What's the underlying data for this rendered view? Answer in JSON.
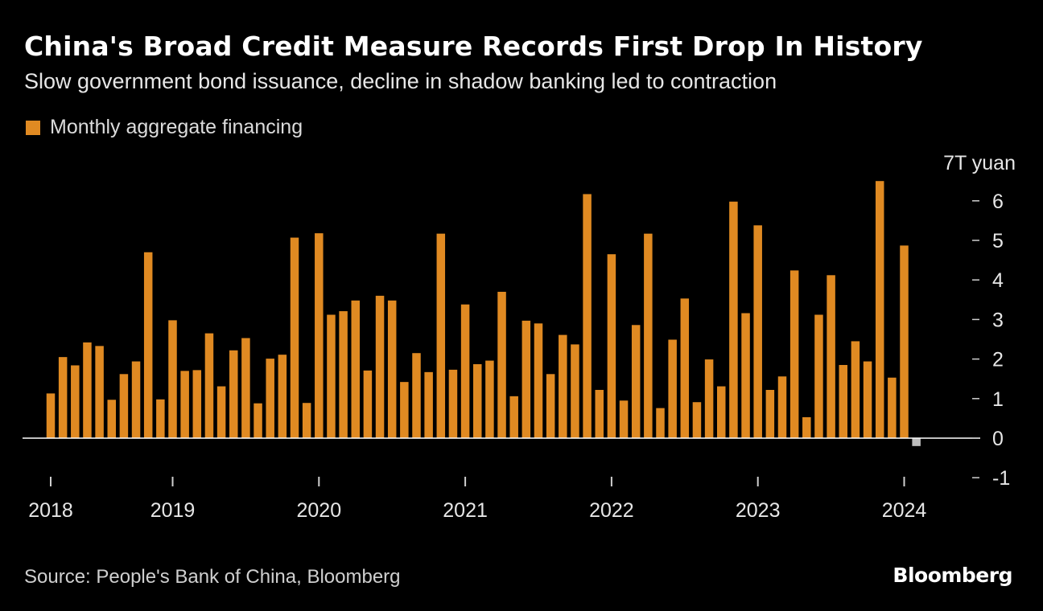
{
  "header": {
    "title": "China's Broad Credit Measure Records First Drop In History",
    "subtitle": "Slow government bond issuance, decline in shadow banking led to contraction"
  },
  "legend": {
    "label": "Monthly aggregate financing"
  },
  "footer": {
    "source": "Source: People's Bank of China, Bloomberg",
    "brand": "Bloomberg"
  },
  "colors": {
    "bar": "#E08A22",
    "negative_bar": "#BDBDBD",
    "background": "#000000",
    "axis": "#ffffff"
  },
  "chart_data": {
    "type": "bar",
    "title": "China's Broad Credit Measure Records First Drop In History",
    "subtitle": "Slow government bond issuance, decline in shadow banking led to contraction",
    "ylabel": "7T yuan",
    "ylim": [
      -1,
      7
    ],
    "yticks": [
      -1,
      0,
      1,
      2,
      3,
      4,
      5,
      6
    ],
    "y_axis_position": "right",
    "start_month": "2018-03",
    "x_tick_labels": [
      {
        "label": "2018",
        "index": 0
      },
      {
        "label": "2019",
        "index": 10
      },
      {
        "label": "2020",
        "index": 22
      },
      {
        "label": "2021",
        "index": 34
      },
      {
        "label": "2022",
        "index": 46
      },
      {
        "label": "2023",
        "index": 58
      },
      {
        "label": "2024",
        "index": 70
      }
    ],
    "series": [
      {
        "name": "Monthly aggregate financing",
        "values": [
          1.13,
          2.05,
          1.84,
          2.42,
          2.33,
          0.97,
          1.62,
          1.94,
          4.7,
          0.98,
          2.98,
          1.7,
          1.72,
          2.65,
          1.31,
          2.22,
          2.53,
          0.88,
          2.01,
          2.11,
          5.07,
          0.89,
          5.18,
          3.12,
          3.21,
          3.48,
          1.71,
          3.6,
          3.48,
          1.42,
          2.15,
          1.67,
          5.17,
          1.73,
          3.38,
          1.87,
          1.96,
          3.7,
          1.06,
          2.97,
          2.9,
          1.62,
          2.61,
          2.37,
          6.17,
          1.22,
          4.65,
          0.95,
          2.86,
          5.17,
          0.76,
          2.49,
          3.53,
          0.91,
          1.99,
          1.31,
          5.98,
          3.16,
          5.38,
          1.22,
          1.56,
          4.24,
          0.53,
          3.12,
          4.12,
          1.85,
          2.45,
          1.94,
          6.5,
          1.53,
          4.87,
          -0.2
        ]
      }
    ]
  }
}
